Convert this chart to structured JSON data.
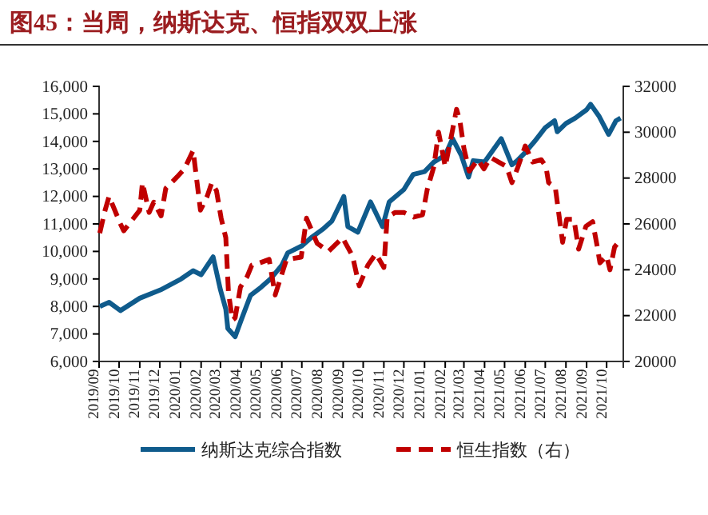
{
  "chart_data": {
    "type": "line",
    "title": "图45：当周，纳斯达克、恒指双双上涨",
    "xlim": [
      "2019-09-01",
      "2021-10-26"
    ],
    "xticks": [
      {
        "value": "2019-09-01",
        "label": "2019/09"
      },
      {
        "value": "2019-10-01",
        "label": "2019/10"
      },
      {
        "value": "2019-11-01",
        "label": "2019/11"
      },
      {
        "value": "2019-12-01",
        "label": "2019/12"
      },
      {
        "value": "2020-01-01",
        "label": "2020/01"
      },
      {
        "value": "2020-02-01",
        "label": "2020/02"
      },
      {
        "value": "2020-03-01",
        "label": "2020/03"
      },
      {
        "value": "2020-04-01",
        "label": "2020/04"
      },
      {
        "value": "2020-05-01",
        "label": "2020/05"
      },
      {
        "value": "2020-06-01",
        "label": "2020/06"
      },
      {
        "value": "2020-07-01",
        "label": "2020/07"
      },
      {
        "value": "2020-08-01",
        "label": "2020/08"
      },
      {
        "value": "2020-09-01",
        "label": "2020/09"
      },
      {
        "value": "2020-10-01",
        "label": "2020/10"
      },
      {
        "value": "2020-11-01",
        "label": "2020/11"
      },
      {
        "value": "2020-12-01",
        "label": "2020/12"
      },
      {
        "value": "2021-01-01",
        "label": "2021/01"
      },
      {
        "value": "2021-02-01",
        "label": "2021/02"
      },
      {
        "value": "2021-03-01",
        "label": "2021/03"
      },
      {
        "value": "2021-04-01",
        "label": "2021/04"
      },
      {
        "value": "2021-05-01",
        "label": "2021/05"
      },
      {
        "value": "2021-06-01",
        "label": "2021/06"
      },
      {
        "value": "2021-07-01",
        "label": "2021/07"
      },
      {
        "value": "2021-08-01",
        "label": "2021/08"
      },
      {
        "value": "2021-09-01",
        "label": "2021/09"
      },
      {
        "value": "2021-10-01",
        "label": "2021/10"
      }
    ],
    "ylim": [
      6000,
      16000
    ],
    "yticks": [
      {
        "value": 6000,
        "label": "6,000"
      },
      {
        "value": 7000,
        "label": "7,000"
      },
      {
        "value": 8000,
        "label": "8,000"
      },
      {
        "value": 9000,
        "label": "9,000"
      },
      {
        "value": 10000,
        "label": "10,000"
      },
      {
        "value": 11000,
        "label": "11,000"
      },
      {
        "value": 12000,
        "label": "12,000"
      },
      {
        "value": 13000,
        "label": "13,000"
      },
      {
        "value": 14000,
        "label": "14,000"
      },
      {
        "value": 15000,
        "label": "15,000"
      },
      {
        "value": 16000,
        "label": "16,000"
      }
    ],
    "y2lim": [
      20000,
      32000
    ],
    "y2ticks": [
      20000,
      22000,
      24000,
      26000,
      28000,
      30000,
      32000
    ],
    "legend": "bottom",
    "grid": false,
    "marker": "none",
    "series": [
      {
        "name": "纳斯达克综合指数",
        "color": "#0f5b8c",
        "line_style": "solid",
        "x": [
          "2019-09-02",
          "2019-09-16",
          "2019-10-03",
          "2019-11-01",
          "2019-12-02",
          "2020-01-02",
          "2020-01-20",
          "2020-02-01",
          "2020-02-19",
          "2020-03-01",
          "2020-03-09",
          "2020-03-12",
          "2020-03-23",
          "2020-04-01",
          "2020-04-15",
          "2020-05-01",
          "2020-05-15",
          "2020-06-01",
          "2020-06-10",
          "2020-07-01",
          "2020-07-15",
          "2020-08-01",
          "2020-08-15",
          "2020-09-02",
          "2020-09-08",
          "2020-09-23",
          "2020-10-12",
          "2020-10-30",
          "2020-11-09",
          "2020-12-01",
          "2020-12-15",
          "2021-01-01",
          "2021-01-15",
          "2021-02-01",
          "2021-02-12",
          "2021-02-25",
          "2021-03-08",
          "2021-03-15",
          "2021-04-01",
          "2021-04-26",
          "2021-05-12",
          "2021-05-20",
          "2021-06-01",
          "2021-06-15",
          "2021-07-01",
          "2021-07-15",
          "2021-07-19",
          "2021-08-01",
          "2021-08-15",
          "2021-09-01",
          "2021-09-07",
          "2021-09-20",
          "2021-10-04",
          "2021-10-15",
          "2021-10-22"
        ],
        "values": [
          8000,
          8150,
          7850,
          8300,
          8600,
          9000,
          9300,
          9150,
          9800,
          8600,
          7900,
          7200,
          6900,
          7500,
          8400,
          8700,
          9000,
          9500,
          9950,
          10200,
          10500,
          10800,
          11100,
          12000,
          10900,
          10700,
          11800,
          10900,
          11800,
          12250,
          12800,
          12900,
          13250,
          13500,
          14100,
          13500,
          12700,
          13300,
          13250,
          14100,
          13150,
          13300,
          13600,
          14000,
          14500,
          14750,
          14350,
          14650,
          14850,
          15150,
          15350,
          14900,
          14250,
          14750,
          14850
        ]
      },
      {
        "name": "恒生指数（右）",
        "color": "#c00000",
        "line_style": "dashed",
        "axis": "y2",
        "x": [
          "2019-09-02",
          "2019-09-10",
          "2019-09-16",
          "2019-10-03",
          "2019-10-08",
          "2019-11-01",
          "2019-11-05",
          "2019-11-15",
          "2019-11-22",
          "2019-12-03",
          "2019-12-10",
          "2019-12-27",
          "2020-01-07",
          "2020-01-20",
          "2020-01-31",
          "2020-02-10",
          "2020-02-17",
          "2020-02-24",
          "2020-03-02",
          "2020-03-09",
          "2020-03-13",
          "2020-03-19",
          "2020-03-23",
          "2020-03-31",
          "2020-04-10",
          "2020-04-17",
          "2020-04-29",
          "2020-05-13",
          "2020-05-22",
          "2020-06-08",
          "2020-06-30",
          "2020-07-08",
          "2020-07-24",
          "2020-08-10",
          "2020-08-31",
          "2020-09-15",
          "2020-09-25",
          "2020-10-08",
          "2020-10-20",
          "2020-11-01",
          "2020-11-06",
          "2020-11-18",
          "2020-12-01",
          "2020-12-16",
          "2020-12-29",
          "2021-01-05",
          "2021-01-15",
          "2021-01-22",
          "2021-02-01",
          "2021-02-12",
          "2021-02-18",
          "2021-02-23",
          "2021-03-01",
          "2021-03-09",
          "2021-03-22",
          "2021-03-31",
          "2021-04-10",
          "2021-04-22",
          "2021-05-04",
          "2021-05-12",
          "2021-05-20",
          "2021-06-01",
          "2021-06-12",
          "2021-06-25",
          "2021-07-02",
          "2021-07-06",
          "2021-07-16",
          "2021-07-27",
          "2021-08-02",
          "2021-08-13",
          "2021-08-20",
          "2021-08-31",
          "2021-09-10",
          "2021-09-17",
          "2021-09-21",
          "2021-10-01",
          "2021-10-06",
          "2021-10-13",
          "2021-10-22"
        ],
        "values": [
          25600,
          26600,
          27200,
          26000,
          25700,
          26600,
          27800,
          26500,
          26950,
          26350,
          27550,
          28050,
          28400,
          29200,
          26600,
          27200,
          27800,
          27450,
          26250,
          25400,
          23000,
          21800,
          21900,
          23250,
          23700,
          24200,
          24300,
          24450,
          22900,
          24450,
          24550,
          26250,
          25150,
          24800,
          25400,
          24600,
          23300,
          24200,
          24700,
          24100,
          26300,
          26500,
          26500,
          26300,
          26400,
          27500,
          28500,
          30000,
          28500,
          30100,
          31000,
          30500,
          29300,
          28300,
          28800,
          28400,
          28900,
          28700,
          28500,
          27800,
          28400,
          29400,
          28700,
          28800,
          28500,
          27800,
          27600,
          25200,
          26200,
          26200,
          24900,
          25900,
          26100,
          25000,
          24300,
          24600,
          24000,
          25000,
          25300
        ]
      }
    ]
  }
}
